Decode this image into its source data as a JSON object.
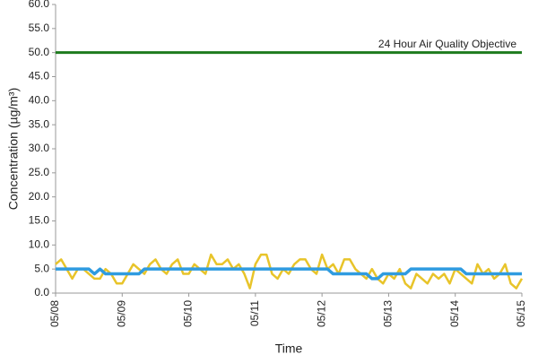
{
  "chart_data": {
    "type": "line",
    "y_label": "Concentration (µg/m³)",
    "x_label": "Time",
    "categories": [
      "05/08",
      null,
      null,
      null,
      null,
      null,
      null,
      null,
      null,
      null,
      null,
      null,
      "05/09",
      null,
      null,
      null,
      null,
      null,
      null,
      null,
      null,
      null,
      null,
      null,
      "05/10",
      null,
      null,
      null,
      null,
      null,
      null,
      null,
      null,
      null,
      null,
      null,
      "05/11",
      null,
      null,
      null,
      null,
      null,
      null,
      null,
      null,
      null,
      null,
      null,
      "05/12",
      null,
      null,
      null,
      null,
      null,
      null,
      null,
      null,
      null,
      null,
      null,
      "05/13",
      null,
      null,
      null,
      null,
      null,
      null,
      null,
      null,
      null,
      null,
      null,
      "05/14",
      null,
      null,
      null,
      null,
      null,
      null,
      null,
      null,
      null,
      null,
      null,
      "05/15"
    ],
    "series": [
      {
        "color": "#e8c42a",
        "values": [
          6,
          7,
          5,
          3,
          5,
          5,
          4,
          3,
          3,
          5,
          4,
          2,
          2,
          4,
          6,
          5,
          4,
          6,
          7,
          5,
          4,
          6,
          7,
          4,
          4,
          6,
          5,
          4,
          8,
          6,
          6,
          7,
          5,
          6,
          4,
          1,
          6,
          8,
          8,
          4,
          3,
          5,
          4,
          6,
          7,
          7,
          5,
          4,
          8,
          5,
          6,
          4,
          7,
          7,
          5,
          4,
          3,
          5,
          3,
          2,
          4,
          3,
          5,
          2,
          1,
          4,
          3,
          2,
          4,
          3,
          4,
          2,
          5,
          4,
          3,
          2,
          6,
          4,
          5,
          3,
          4,
          6,
          2,
          1,
          3
        ]
      },
      {
        "color": "#2f9be0",
        "values": [
          5,
          5,
          5,
          5,
          5,
          5,
          5,
          4,
          5,
          4,
          4,
          4,
          4,
          4,
          4,
          4,
          5,
          5,
          5,
          5,
          5,
          5,
          5,
          5,
          5,
          5,
          5,
          5,
          5,
          5,
          5,
          5,
          5,
          5,
          5,
          5,
          5,
          5,
          5,
          5,
          5,
          5,
          5,
          5,
          5,
          5,
          5,
          5,
          5,
          5,
          4,
          4,
          4,
          4,
          4,
          4,
          4,
          3,
          3,
          4,
          4,
          4,
          4,
          4,
          5,
          5,
          5,
          5,
          5,
          5,
          5,
          5,
          5,
          5,
          4,
          4,
          4,
          4,
          4,
          4,
          4,
          4,
          4,
          4,
          4
        ]
      }
    ],
    "reference": {
      "value": 50,
      "label": "24 Hour Air Quality Objective",
      "color": "#1e7b1e"
    },
    "ylim": [
      0,
      60
    ],
    "yticks": [
      {
        "value": 0,
        "label": "0.0"
      },
      {
        "value": 5,
        "label": "5.0"
      },
      {
        "value": 10,
        "label": "10.0"
      },
      {
        "value": 15,
        "label": "15.0"
      },
      {
        "value": 20,
        "label": "20.0"
      },
      {
        "value": 25,
        "label": "25.0"
      },
      {
        "value": 30,
        "label": "30.0"
      },
      {
        "value": 35,
        "label": "35.0"
      },
      {
        "value": 40,
        "label": "40.0"
      },
      {
        "value": 45,
        "label": "45.0"
      },
      {
        "value": 50,
        "label": "50.0"
      },
      {
        "value": 55,
        "label": "55.0"
      },
      {
        "value": 60,
        "label": "60.0"
      }
    ],
    "grid": false
  }
}
